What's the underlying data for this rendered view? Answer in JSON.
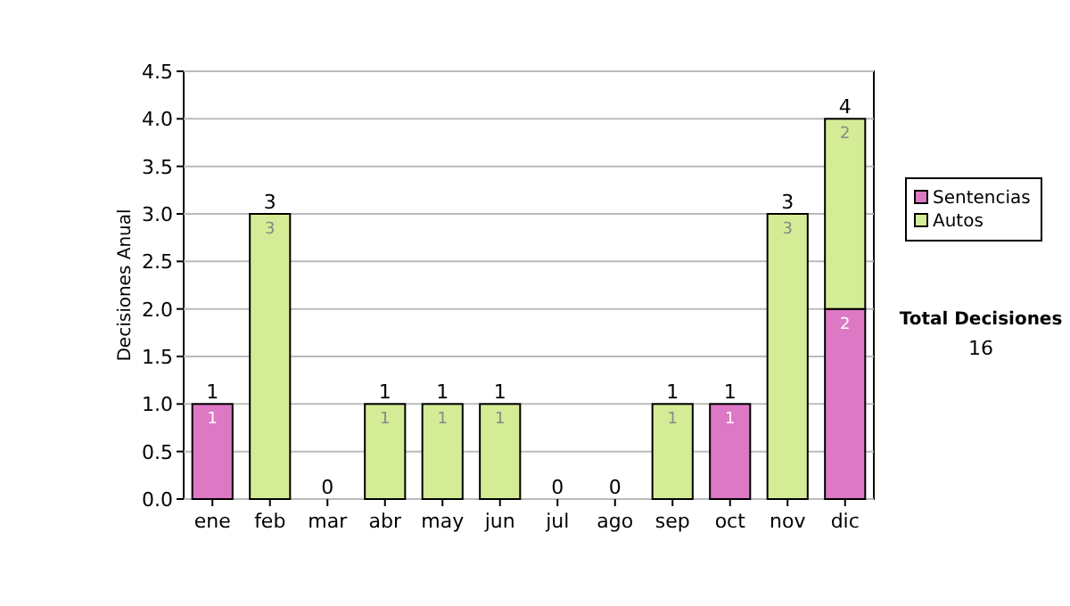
{
  "chart_data": {
    "type": "bar",
    "stacked": true,
    "ylabel": "Decisiones Anual",
    "categories": [
      "ene",
      "feb",
      "mar",
      "abr",
      "may",
      "jun",
      "jul",
      "ago",
      "sep",
      "oct",
      "nov",
      "dic"
    ],
    "series": [
      {
        "name": "Sentencias",
        "color": "#dd78c4",
        "values": [
          1,
          0,
          0,
          0,
          0,
          0,
          0,
          0,
          0,
          1,
          0,
          2
        ],
        "value_labels": [
          "1",
          null,
          null,
          null,
          null,
          null,
          null,
          null,
          null,
          "1",
          null,
          "2"
        ]
      },
      {
        "name": "Autos",
        "color": "#d4ec96",
        "values": [
          0,
          3,
          0,
          1,
          1,
          1,
          0,
          0,
          1,
          0,
          3,
          2
        ],
        "value_labels": [
          null,
          "3",
          null,
          "1",
          "1",
          "1",
          null,
          null,
          "1",
          null,
          "3",
          "2"
        ]
      }
    ],
    "totals": [
      "1",
      "3",
      "0",
      "1",
      "1",
      "1",
      "0",
      "0",
      "1",
      "1",
      "3",
      "4"
    ],
    "ylim": [
      0,
      4.5
    ],
    "yticks": [
      {
        "value": 0,
        "label": "0.0"
      },
      {
        "value": 0.5,
        "label": "0.5"
      },
      {
        "value": 1,
        "label": "1.0"
      },
      {
        "value": 1.5,
        "label": "1.5"
      },
      {
        "value": 2,
        "label": "2.0"
      },
      {
        "value": 2.5,
        "label": "2.5"
      },
      {
        "value": 3,
        "label": "3.0"
      },
      {
        "value": 3.5,
        "label": "3.5"
      },
      {
        "value": 4,
        "label": "4.0"
      },
      {
        "value": 4.5,
        "label": "4.5"
      }
    ],
    "grid": "y",
    "legend": "right",
    "annotations": [
      "Total Decisiones",
      "16"
    ]
  }
}
